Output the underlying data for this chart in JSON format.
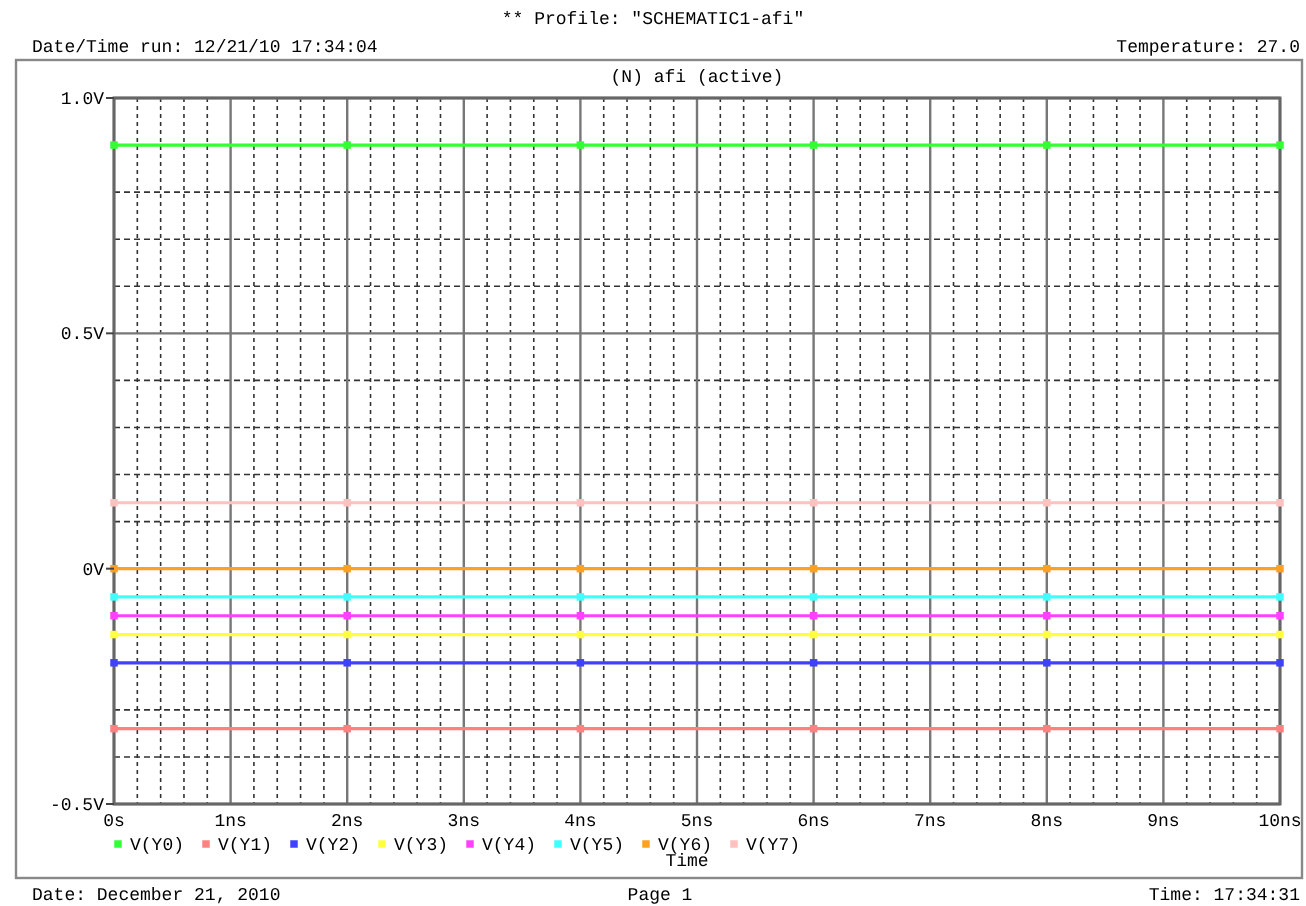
{
  "chart_data": {
    "type": "line",
    "title": "** Profile: \"SCHEMATIC1-afi\"",
    "subtitle": "(N) afi (active)",
    "xlabel": "Time",
    "annotations": [
      "Date/Time run: 12/21/10 17:34:04",
      "Temperature: 27.0",
      "Date: December 21, 2010",
      "Page 1",
      "Time: 17:34:31"
    ],
    "x": [
      0,
      2,
      4,
      6,
      8,
      10
    ],
    "xlim": [
      0,
      10
    ],
    "xticks": [
      {
        "value": 0,
        "label": "0s"
      },
      {
        "value": 1,
        "label": "1ns"
      },
      {
        "value": 2,
        "label": "2ns"
      },
      {
        "value": 3,
        "label": "3ns"
      },
      {
        "value": 4,
        "label": "4ns"
      },
      {
        "value": 5,
        "label": "5ns"
      },
      {
        "value": 6,
        "label": "6ns"
      },
      {
        "value": 7,
        "label": "7ns"
      },
      {
        "value": 8,
        "label": "8ns"
      },
      {
        "value": 9,
        "label": "9ns"
      },
      {
        "value": 10,
        "label": "10ns"
      }
    ],
    "ylim": [
      -0.5,
      1.0
    ],
    "yticks": [
      {
        "value": -0.5,
        "label": "-0.5V"
      },
      {
        "value": 0,
        "label": "0V"
      },
      {
        "value": 0.5,
        "label": "0.5V"
      },
      {
        "value": 1.0,
        "label": "1.0V"
      }
    ],
    "grid": true,
    "legend": "bottom",
    "marker": "square",
    "series": [
      {
        "name": "V(Y0)",
        "color": "#33ff33",
        "values": [
          0.9,
          0.9,
          0.9,
          0.9,
          0.9,
          0.9
        ]
      },
      {
        "name": "V(Y1)",
        "color": "#ff8080",
        "values": [
          -0.34,
          -0.34,
          -0.34,
          -0.34,
          -0.34,
          -0.34
        ]
      },
      {
        "name": "V(Y2)",
        "color": "#4040ff",
        "values": [
          -0.2,
          -0.2,
          -0.2,
          -0.2,
          -0.2,
          -0.2
        ]
      },
      {
        "name": "V(Y3)",
        "color": "#ffff40",
        "values": [
          -0.14,
          -0.14,
          -0.14,
          -0.14,
          -0.14,
          -0.14
        ]
      },
      {
        "name": "V(Y4)",
        "color": "#ff40ff",
        "values": [
          -0.1,
          -0.1,
          -0.1,
          -0.1,
          -0.1,
          -0.1
        ]
      },
      {
        "name": "V(Y5)",
        "color": "#40ffff",
        "values": [
          -0.06,
          -0.06,
          -0.06,
          -0.06,
          -0.06,
          -0.06
        ]
      },
      {
        "name": "V(Y6)",
        "color": "#ffa020",
        "values": [
          0,
          0,
          0,
          0,
          0,
          0
        ]
      },
      {
        "name": "V(Y7)",
        "color": "#ffc0c0",
        "values": [
          0.14,
          0.14,
          0.14,
          0.14,
          0.14,
          0.14
        ]
      }
    ]
  }
}
